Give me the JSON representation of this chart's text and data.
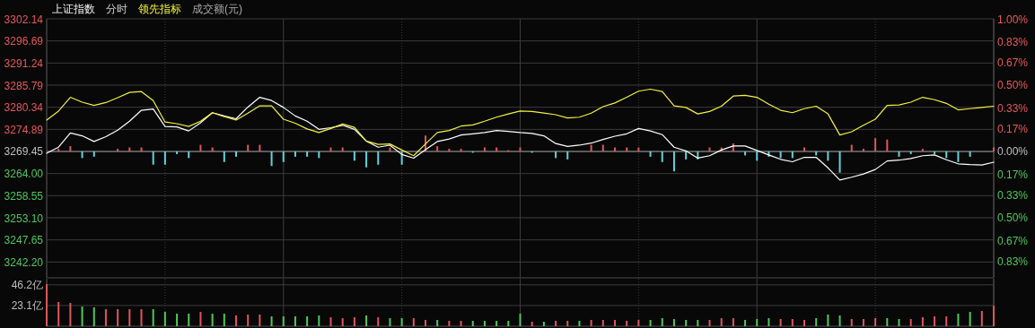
{
  "chart_data": [
    {
      "type": "line",
      "title": "上证指数",
      "subtitle": "分时",
      "annotations": [
        "成交额(元)"
      ],
      "grid": true,
      "categories": [
        null,
        null,
        null,
        null,
        null,
        null,
        null,
        null,
        null,
        null,
        null,
        null,
        null,
        null,
        null,
        null,
        null,
        null,
        null,
        null,
        null,
        null,
        null,
        null,
        null,
        null,
        null,
        null,
        null,
        null,
        null,
        null,
        null,
        null,
        null,
        null,
        null,
        null,
        null,
        null,
        null,
        null,
        null,
        null,
        null,
        null,
        null,
        null,
        null,
        null,
        null,
        null,
        null,
        null,
        null,
        null,
        null,
        null,
        null,
        null,
        null,
        null,
        null,
        null,
        null,
        null,
        null,
        null,
        null,
        null,
        null,
        null,
        null,
        null,
        null,
        null,
        null,
        null,
        null,
        null,
        null
      ],
      "ylim": [
        3238.3,
        3302.14
      ],
      "yticks": [
        {
          "value": 3302.14,
          "label": "3302.14"
        },
        {
          "value": 3296.69,
          "label": "3296.69"
        },
        {
          "value": 3291.24,
          "label": "3291.24"
        },
        {
          "value": 3285.79,
          "label": "3285.79"
        },
        {
          "value": 3280.34,
          "label": "3280.34"
        },
        {
          "value": 3274.89,
          "label": "3274.89"
        },
        {
          "value": 3269.45,
          "label": "3269.45"
        },
        {
          "value": 3264,
          "label": "3264.00"
        },
        {
          "value": 3258.55,
          "label": "3258.55"
        },
        {
          "value": 3253.1,
          "label": "3253.10"
        },
        {
          "value": 3247.65,
          "label": "3247.65"
        },
        {
          "value": 3242.2,
          "label": "3242.20"
        }
      ],
      "y2lim": [
        -0.953,
        1.0
      ],
      "y2ticks": [
        {
          "value": 1,
          "label": "1.00%"
        },
        {
          "value": 0.83,
          "label": "0.83%"
        },
        {
          "value": 0.67,
          "label": "0.67%"
        },
        {
          "value": 0.5,
          "label": "0.50%"
        },
        {
          "value": 0.33,
          "label": "0.33%"
        },
        {
          "value": 0.17,
          "label": "0.17%"
        },
        {
          "value": 0,
          "label": "0.00%"
        },
        {
          "value": -0.17,
          "label": "0.17%"
        },
        {
          "value": -0.33,
          "label": "0.33%"
        },
        {
          "value": -0.5,
          "label": "0.50%"
        },
        {
          "value": -0.67,
          "label": "0.67%"
        },
        {
          "value": -0.83,
          "label": "0.83%"
        }
      ],
      "ref_lines": [
        {
          "axis": "y",
          "value": 3269.45,
          "color": "#5a5a5a"
        }
      ],
      "series": [
        {
          "type": "bar",
          "axis": "y2",
          "color": "#e0555b",
          "values": [
            null,
            0.02,
            0.04,
            null,
            null,
            null,
            0.02,
            0.03,
            0.03,
            null,
            null,
            null,
            null,
            0.05,
            0.03,
            null,
            null,
            0.05,
            0.05,
            null,
            null,
            null,
            null,
            null,
            0.03,
            0.03,
            null,
            null,
            null,
            0.03,
            null,
            null,
            0.12,
            0.04,
            0.02,
            0.02,
            null,
            0.03,
            0.03,
            0.01,
            0.03,
            null,
            null,
            null,
            null,
            null,
            0.05,
            0.05,
            0.03,
            0.03,
            0.03,
            null,
            null,
            null,
            null,
            null,
            0.03,
            0.03,
            0.06,
            null,
            null,
            null,
            null,
            null,
            0.03,
            null,
            null,
            null,
            0.05,
            0.02,
            0.1,
            0.09,
            null,
            null,
            0.02,
            null,
            null,
            null,
            null,
            null,
            0.03
          ]
        },
        {
          "type": "bar",
          "axis": "y2",
          "color": "#5fd3dc",
          "values": [
            null,
            null,
            null,
            -0.05,
            -0.04,
            null,
            null,
            null,
            null,
            -0.1,
            -0.1,
            -0.02,
            -0.05,
            null,
            null,
            -0.08,
            -0.04,
            null,
            null,
            -0.11,
            -0.08,
            -0.04,
            -0.04,
            -0.05,
            null,
            null,
            -0.07,
            -0.12,
            -0.1,
            null,
            -0.1,
            null,
            null,
            null,
            null,
            null,
            -0.01,
            null,
            null,
            null,
            null,
            -0.01,
            null,
            -0.05,
            -0.06,
            null,
            null,
            null,
            null,
            null,
            null,
            -0.04,
            -0.08,
            -0.15,
            -0.06,
            -0.06,
            null,
            null,
            null,
            -0.03,
            -0.07,
            -0.04,
            -0.05,
            -0.05,
            null,
            -0.03,
            -0.07,
            -0.16,
            null,
            null,
            null,
            null,
            -0.04,
            -0.02,
            null,
            -0.02,
            -0.05,
            -0.08,
            -0.04,
            null,
            null
          ]
        },
        {
          "type": "line",
          "color": "#ffffff",
          "values": [
            3269.0,
            3270.5,
            3274.0,
            3273.3,
            3271.9,
            3273.1,
            3274.7,
            3276.9,
            3279.6,
            3279.9,
            3275.6,
            3275.5,
            3274.5,
            3276.5,
            3279.0,
            3278.2,
            3277.5,
            3280.4,
            3282.8,
            3282.0,
            3280.3,
            3278.2,
            3276.9,
            3274.9,
            3275.3,
            3275.9,
            3274.9,
            3272.0,
            3270.5,
            3271.0,
            3268.7,
            3267.8,
            3269.9,
            3271.9,
            3272.5,
            3273.5,
            3273.8,
            3274.1,
            3274.6,
            3274.4,
            3274.1,
            3273.9,
            3273.3,
            3271.4,
            3270.7,
            3271.0,
            3271.5,
            3272.4,
            3273.2,
            3273.8,
            3275.1,
            3274.5,
            3273.6,
            3270.5,
            3269.6,
            3267.8,
            3268.4,
            3269.8,
            3270.8,
            3270.8,
            3269.7,
            3268.6,
            3267.5,
            3266.9,
            3268.0,
            3268.0,
            3265.4,
            3262.4,
            3263.1,
            3263.9,
            3265.0,
            3267.1,
            3267.3,
            3267.7,
            3268.4,
            3268.6,
            3267.4,
            3266.4,
            3266.2,
            3266.1,
            3266.8
          ]
        },
        {
          "type": "line",
          "name": "领先指标",
          "color": "#f2f23c",
          "values": [
            3277.2,
            3279.4,
            3282.8,
            3281.6,
            3280.8,
            3281.5,
            3282.7,
            3284.0,
            3284.2,
            3282.0,
            3276.7,
            3276.3,
            3275.6,
            3276.9,
            3279.0,
            3278.0,
            3277.2,
            3278.9,
            3280.7,
            3280.7,
            3277.4,
            3276.4,
            3275.0,
            3274.1,
            3275.1,
            3276.2,
            3275.4,
            3272.0,
            3271.2,
            3271.3,
            3269.8,
            3268.4,
            3271.3,
            3274.1,
            3274.6,
            3275.7,
            3276.0,
            3276.9,
            3277.9,
            3278.7,
            3279.4,
            3279.3,
            3278.9,
            3278.5,
            3277.7,
            3277.9,
            3278.9,
            3280.5,
            3281.4,
            3282.8,
            3284.3,
            3284.8,
            3284.2,
            3280.7,
            3280.3,
            3278.7,
            3279.3,
            3280.6,
            3283.1,
            3283.3,
            3282.8,
            3281.1,
            3279.6,
            3279.0,
            3280.0,
            3280.6,
            3278.7,
            3273.5,
            3274.3,
            3275.9,
            3277.4,
            3280.8,
            3280.9,
            3281.6,
            3282.8,
            3282.2,
            3281.3,
            3279.7,
            3280.0,
            3280.3,
            3280.6
          ]
        }
      ]
    },
    {
      "type": "bar",
      "grid": true,
      "categories": [
        null,
        null,
        null,
        null,
        null,
        null,
        null,
        null,
        null,
        null,
        null,
        null,
        null,
        null,
        null,
        null,
        null,
        null,
        null,
        null,
        null,
        null,
        null,
        null,
        null,
        null,
        null,
        null,
        null,
        null,
        null,
        null,
        null,
        null,
        null,
        null,
        null,
        null,
        null,
        null,
        null,
        null,
        null,
        null,
        null,
        null,
        null,
        null,
        null,
        null,
        null,
        null,
        null,
        null,
        null,
        null,
        null,
        null,
        null,
        null,
        null,
        null,
        null,
        null,
        null,
        null,
        null,
        null,
        null,
        null,
        null,
        null,
        null,
        null,
        null,
        null,
        null,
        null,
        null,
        null,
        null
      ],
      "ylim": [
        0,
        53
      ],
      "yticks": [
        {
          "value": 46.2,
          "label": "46.2亿"
        },
        {
          "value": 23.1,
          "label": "23.1亿"
        }
      ],
      "series": [
        {
          "values": [
            47,
            27,
            26,
            22,
            21,
            19,
            19,
            19,
            19,
            19,
            16,
            14,
            14,
            16,
            14,
            14,
            12,
            13,
            13,
            11,
            11,
            11,
            11,
            12,
            10,
            9,
            10,
            12,
            10,
            9,
            9,
            9,
            7,
            7,
            6,
            6,
            6,
            6,
            6,
            6,
            14,
            5,
            5,
            6,
            6,
            6,
            7,
            7,
            7,
            6,
            7,
            7,
            9,
            8,
            7,
            7,
            7,
            9,
            9,
            7,
            8,
            9,
            8,
            8,
            7,
            9,
            13,
            12,
            8,
            8,
            9,
            9,
            8,
            8,
            10,
            11,
            11,
            14,
            16,
            17,
            23
          ],
          "colors": [
            "#e0555b",
            "#e0555b",
            "#e0555b",
            "#4fc75a",
            "#4fc75a",
            "#e0555b",
            "#e0555b",
            "#e0555b",
            "#e0555b",
            "#4fc75a",
            "#4fc75a",
            "#4fc75a",
            "#4fc75a",
            "#e0555b",
            "#4fc75a",
            "#4fc75a",
            "#e0555b",
            "#e0555b",
            "#e0555b",
            "#4fc75a",
            "#4fc75a",
            "#4fc75a",
            "#4fc75a",
            "#4fc75a",
            "#e0555b",
            "#e0555b",
            "#e0555b",
            "#4fc75a",
            "#e0555b",
            "#4fc75a",
            "#4fc75a",
            "#e0555b",
            "#e0555b",
            "#4fc75a",
            "#e0555b",
            "#e0555b",
            "#4fc75a",
            "#4fc75a",
            "#4fc75a",
            "#4fc75a",
            "#4fc75a",
            "#e0555b",
            "#4fc75a",
            "#e0555b",
            "#e0555b",
            "#4fc75a",
            "#e0555b",
            "#e0555b",
            "#e0555b",
            "#e0555b",
            "#e0555b",
            "#4fc75a",
            "#4fc75a",
            "#4fc75a",
            "#4fc75a",
            "#4fc75a",
            "#e0555b",
            "#e0555b",
            "#e0555b",
            "#4fc75a",
            "#4fc75a",
            "#4fc75a",
            "#e0555b",
            "#e0555b",
            "#e0555b",
            "#4fc75a",
            "#4fc75a",
            "#4fc75a",
            "#e0555b",
            "#e0555b",
            "#e0555b",
            "#4fc75a",
            "#4fc75a",
            "#e0555b",
            "#e0555b",
            "#e0555b",
            "#e0555b",
            "#4fc75a",
            "#4fc75a",
            "#e0555b",
            "#e0555b"
          ]
        }
      ]
    }
  ]
}
